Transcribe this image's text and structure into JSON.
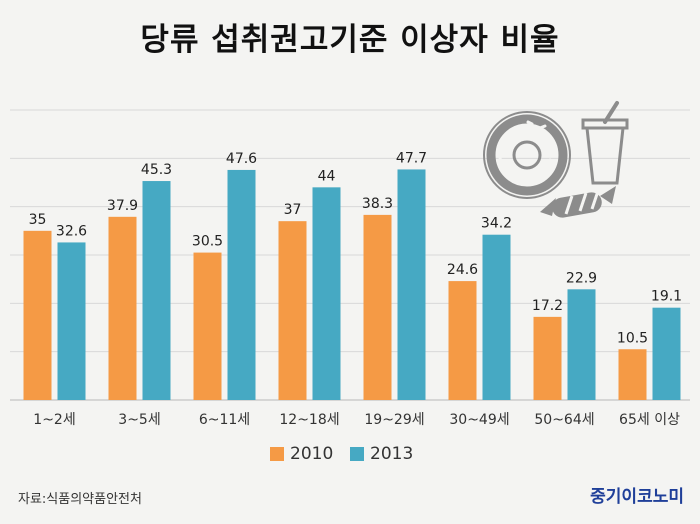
{
  "chart_data": {
    "type": "bar",
    "title": "당류 섭취권고기준 이상자 비율",
    "categories": [
      "1~2세",
      "3~5세",
      "6~11세",
      "12~18세",
      "19~29세",
      "30~49세",
      "50~64세",
      "65세 이상"
    ],
    "series": [
      {
        "name": "2010",
        "values": [
          35,
          37.9,
          30.5,
          37,
          38.3,
          24.6,
          17.2,
          10.5
        ],
        "color": "#f59a45"
      },
      {
        "name": "2013",
        "values": [
          32.6,
          45.3,
          47.6,
          44,
          47.7,
          34.2,
          22.9,
          19.1
        ],
        "color": "#46a9c3"
      }
    ],
    "ylim": [
      0,
      60
    ],
    "grid": true,
    "legend": "bottom-center"
  },
  "footer": {
    "source": "자료:식품의약품안전처",
    "brand": "중기이코노미"
  },
  "colors": {
    "background": "#f4f4f2",
    "grid": "#d8d8d8",
    "illustration": "#8c8c8c"
  },
  "icons": [
    "donut-icon",
    "drink-cup-icon",
    "candy-icon"
  ]
}
